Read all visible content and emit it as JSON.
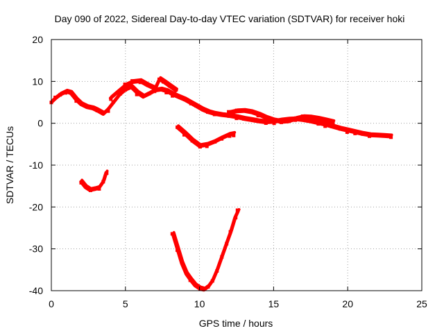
{
  "chart_data": {
    "type": "scatter",
    "title": "Day 090 of 2022, Sidereal Day-to-day VTEC variation (SDTVAR) for receiver hoki",
    "xlabel": "GPS time / hours",
    "ylabel": "SDTVAR / TECUs",
    "xlim": [
      0,
      25
    ],
    "ylim": [
      -40,
      20
    ],
    "x_ticks": [
      0,
      5,
      10,
      15,
      20,
      25
    ],
    "y_ticks": [
      -40,
      -30,
      -20,
      -10,
      0,
      10,
      20
    ],
    "grid": true,
    "series_color": "#ff0000",
    "series": [
      {
        "name": "main-band",
        "x": [
          0.0,
          0.3,
          0.6,
          1.0,
          1.3,
          1.7,
          2.0,
          2.4,
          2.8,
          3.1,
          3.5,
          3.8,
          4.2,
          4.6,
          5.0,
          5.4,
          5.8,
          6.2,
          6.6,
          7.0,
          7.4,
          7.8,
          8.2,
          8.6,
          9.0,
          9.4,
          9.8,
          10.2,
          10.6,
          11.0,
          11.5,
          12.0,
          12.5,
          13.0,
          13.5,
          14.0,
          14.5,
          15.0,
          15.5,
          16.0,
          16.5,
          17.0,
          17.5,
          18.0,
          18.5,
          19.0,
          19.5,
          20.0,
          20.5,
          21.0,
          21.5,
          22.0,
          22.5,
          22.9
        ],
        "y": [
          5.0,
          6.0,
          6.8,
          7.5,
          7.2,
          5.5,
          4.5,
          3.8,
          3.5,
          3.0,
          2.2,
          3.2,
          5.0,
          6.8,
          8.0,
          8.6,
          7.2,
          6.3,
          7.0,
          7.8,
          8.0,
          7.6,
          6.8,
          6.2,
          5.6,
          4.8,
          4.0,
          3.2,
          2.6,
          2.2,
          1.9,
          1.7,
          1.4,
          1.0,
          0.7,
          0.4,
          0.2,
          0.3,
          0.6,
          0.8,
          0.9,
          0.7,
          0.4,
          0.0,
          -0.4,
          -0.9,
          -1.4,
          -1.8,
          -2.2,
          -2.6,
          -2.9,
          -3.0,
          -3.1,
          -3.2
        ]
      },
      {
        "name": "upper-branch",
        "x": [
          4.0,
          4.5,
          5.0,
          5.5,
          6.0,
          6.5,
          7.0,
          7.3,
          7.6,
          8.0,
          8.4
        ],
        "y": [
          6.0,
          7.5,
          9.0,
          9.8,
          10.0,
          9.0,
          8.2,
          10.5,
          9.8,
          8.8,
          7.8
        ]
      },
      {
        "name": "mid-branch",
        "x": [
          12.0,
          12.5,
          13.0,
          13.5,
          14.0,
          14.5,
          15.0,
          15.5,
          16.0,
          16.5,
          17.0,
          17.5,
          18.0,
          18.5,
          19.0
        ],
        "y": [
          2.4,
          2.8,
          2.9,
          2.6,
          2.0,
          1.2,
          0.6,
          0.3,
          0.4,
          1.0,
          1.4,
          1.3,
          1.0,
          0.6,
          0.2
        ]
      },
      {
        "name": "arc-around-10h",
        "x": [
          8.5,
          9.0,
          9.5,
          10.0,
          10.5,
          11.0,
          11.5,
          12.0,
          12.3
        ],
        "y": [
          -1.0,
          -2.5,
          -4.2,
          -5.5,
          -5.2,
          -4.5,
          -3.6,
          -2.8,
          -2.6
        ]
      },
      {
        "name": "arc-around-3h",
        "x": [
          2.0,
          2.3,
          2.6,
          2.9,
          3.2,
          3.5,
          3.7
        ],
        "y": [
          -14.0,
          -15.3,
          -16.0,
          -15.8,
          -15.5,
          -14.0,
          -11.8
        ]
      },
      {
        "name": "deep-arc",
        "x": [
          8.2,
          8.5,
          8.8,
          9.1,
          9.4,
          9.7,
          10.0,
          10.3,
          10.6,
          10.9,
          11.2,
          11.5,
          11.8,
          12.1,
          12.4,
          12.6
        ],
        "y": [
          -26.5,
          -30.0,
          -33.5,
          -36.0,
          -37.5,
          -38.8,
          -39.5,
          -39.8,
          -39.0,
          -37.5,
          -35.0,
          -32.0,
          -29.0,
          -26.0,
          -22.5,
          -21.0
        ]
      }
    ]
  }
}
